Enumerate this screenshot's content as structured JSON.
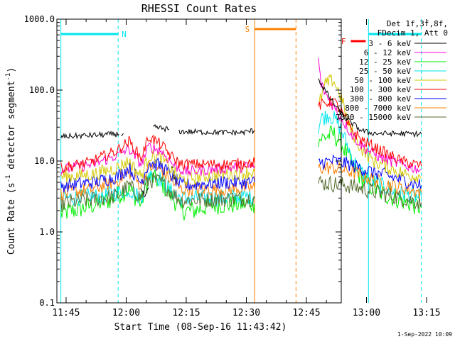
{
  "chart_data": {
    "type": "line",
    "title": "RHESSI Count Rates",
    "xlabel": "Start Time (08-Sep-16 11:43:42)",
    "ylabel_parts": {
      "pre": "Count Rate (s",
      "sup": "-1",
      "post": " detector segment",
      "sup2": "-1",
      "end": ")"
    },
    "yscale": "log",
    "ylim": [
      0.1,
      1000
    ],
    "xlim_min": [
      -1,
      70
    ],
    "x_origin_time": "11:43:42",
    "x_ticks": [
      {
        "label": "11:45",
        "v": 1.3
      },
      {
        "label": "12:00",
        "v": 16.3
      },
      {
        "label": "12:15",
        "v": 31.3
      },
      {
        "label": "12:30",
        "v": 46.3
      },
      {
        "label": "12:45",
        "v": 61.3
      },
      {
        "label": "13:00",
        "v": 76.3
      },
      {
        "label": "13:15",
        "v": 91.3
      }
    ],
    "y_ticks": [
      {
        "label": "0.1",
        "v": 0.1
      },
      {
        "label": "1.0",
        "v": 1
      },
      {
        "label": "10.0",
        "v": 10
      },
      {
        "label": "100.0",
        "v": 100
      },
      {
        "label": "1000.0",
        "v": 1000
      }
    ],
    "legend_header": [
      "Det 1f,3f,8f,",
      "FDecim 1, Att 0"
    ],
    "series": [
      {
        "name": "3 - 6 keV",
        "color": "#000000",
        "segs": [
          [
            [
              0,
              22
            ],
            [
              14.5,
              24
            ]
          ],
          [
            [
              15,
              24
            ],
            [
              15.6,
              24.5
            ]
          ],
          [
            [
              20,
              4
            ],
            [
              21,
              3
            ],
            [
              22,
              4.2
            ]
          ],
          [
            [
              23,
              30
            ],
            [
              27,
              28
            ]
          ],
          [
            [
              27.5,
              8
            ],
            [
              28,
              8
            ]
          ],
          [
            [
              28,
              6
            ],
            [
              29,
              5
            ]
          ],
          [
            [
              29.5,
              26
            ],
            [
              45,
              25
            ],
            [
              48.4,
              27
            ]
          ],
          [
            [
              64.3,
              150
            ],
            [
              65,
              120
            ],
            [
              67,
              80
            ],
            [
              69,
              55
            ],
            [
              71,
              40
            ],
            [
              73,
              33
            ],
            [
              75,
              27
            ],
            [
              77,
              25
            ],
            [
              79,
              24.5
            ],
            [
              90,
              24
            ]
          ]
        ]
      },
      {
        "name": "6 - 12 keV",
        "color": "#ff00cc",
        "segs": [
          [
            [
              0,
              7.5
            ],
            [
              8,
              9
            ],
            [
              14,
              12
            ],
            [
              17,
              15
            ],
            [
              20,
              9
            ],
            [
              22,
              16
            ],
            [
              25,
              14
            ],
            [
              28,
              9
            ],
            [
              31,
              7
            ],
            [
              36,
              7.5
            ],
            [
              42,
              8
            ],
            [
              48.4,
              8.5
            ]
          ],
          [
            [
              64.3,
              260
            ],
            [
              65,
              120
            ],
            [
              66.5,
              80
            ],
            [
              68,
              60
            ],
            [
              70,
              40
            ],
            [
              73,
              22
            ],
            [
              76,
              15
            ],
            [
              80,
              11
            ],
            [
              85,
              9
            ],
            [
              90,
              7.5
            ]
          ]
        ]
      },
      {
        "name": "12 - 25 keV",
        "color": "#00ee00",
        "segs": [
          [
            [
              0,
              1.8
            ],
            [
              6,
              2.2
            ],
            [
              12,
              2.8
            ],
            [
              17,
              4
            ],
            [
              20,
              2.5
            ],
            [
              22,
              6
            ],
            [
              25,
              5
            ],
            [
              28,
              3
            ],
            [
              30,
              2
            ],
            [
              33,
              2
            ],
            [
              38,
              2.4
            ],
            [
              48.4,
              2.5
            ]
          ],
          [
            [
              64.3,
              20
            ],
            [
              66,
              22
            ],
            [
              68,
              24
            ],
            [
              70,
              18
            ],
            [
              73,
              8
            ],
            [
              76,
              5
            ],
            [
              80,
              3.5
            ],
            [
              85,
              2.8
            ],
            [
              90,
              2.2
            ]
          ]
        ]
      },
      {
        "name": "25 - 50 keV",
        "color": "#00e5ee",
        "segs": [
          [
            [
              0,
              3
            ],
            [
              10,
              3.2
            ],
            [
              17,
              4
            ],
            [
              20,
              3
            ],
            [
              22,
              7
            ],
            [
              25,
              5.5
            ],
            [
              28,
              3.5
            ],
            [
              30,
              3
            ],
            [
              40,
              3
            ],
            [
              48.4,
              3.2
            ]
          ],
          [
            [
              64.3,
              30
            ],
            [
              65,
              40
            ],
            [
              67,
              45
            ],
            [
              69,
              35
            ],
            [
              71,
              20
            ],
            [
              73,
              10
            ],
            [
              76,
              6
            ],
            [
              80,
              4.5
            ],
            [
              85,
              3.5
            ],
            [
              90,
              3
            ]
          ]
        ]
      },
      {
        "name": "50 - 100 keV",
        "color": "#d4c800",
        "segs": [
          [
            [
              0,
              6
            ],
            [
              8,
              6.5
            ],
            [
              14,
              8
            ],
            [
              17,
              10
            ],
            [
              20,
              6
            ],
            [
              22,
              12
            ],
            [
              25,
              11
            ],
            [
              28,
              7
            ],
            [
              30,
              5.5
            ],
            [
              40,
              6.5
            ],
            [
              48.4,
              7
            ]
          ],
          [
            [
              64.3,
              60
            ],
            [
              66,
              120
            ],
            [
              68,
              140
            ],
            [
              70,
              80
            ],
            [
              72,
              30
            ],
            [
              75,
              15
            ],
            [
              78,
              10
            ],
            [
              82,
              8
            ],
            [
              86,
              6.5
            ],
            [
              90,
              6
            ]
          ]
        ]
      },
      {
        "name": "100 - 300 keV",
        "color": "#ff0000",
        "segs": [
          [
            [
              0,
              8
            ],
            [
              7,
              9.5
            ],
            [
              14,
              14
            ],
            [
              17,
              19
            ],
            [
              20,
              11
            ],
            [
              22,
              22
            ],
            [
              25,
              17
            ],
            [
              28,
              11
            ],
            [
              30,
              9
            ],
            [
              35,
              9
            ],
            [
              42,
              9
            ],
            [
              48.4,
              9.5
            ]
          ],
          [
            [
              64.3,
              60
            ],
            [
              66,
              65
            ],
            [
              68,
              72
            ],
            [
              70,
              50
            ],
            [
              72,
              30
            ],
            [
              75,
              20
            ],
            [
              78,
              16
            ],
            [
              81,
              13
            ],
            [
              85,
              10
            ],
            [
              90,
              8.5
            ]
          ]
        ]
      },
      {
        "name": "300 - 800 keV",
        "color": "#0000ff",
        "segs": [
          [
            [
              0,
              4.5
            ],
            [
              8,
              5
            ],
            [
              14,
              6
            ],
            [
              17,
              8
            ],
            [
              20,
              5
            ],
            [
              22,
              9.5
            ],
            [
              25,
              8.5
            ],
            [
              28,
              6
            ],
            [
              30,
              4.5
            ],
            [
              40,
              5
            ],
            [
              48.4,
              5
            ]
          ],
          [
            [
              64.3,
              9.5
            ],
            [
              68,
              10
            ],
            [
              72,
              9
            ],
            [
              76,
              7.5
            ],
            [
              80,
              6.5
            ],
            [
              85,
              5.5
            ],
            [
              90,
              4.5
            ]
          ]
        ]
      },
      {
        "name": "800 - 7000 keV",
        "color": "#ff8000",
        "segs": [
          [
            [
              0,
              3.5
            ],
            [
              8,
              4
            ],
            [
              14,
              5.2
            ],
            [
              17,
              7
            ],
            [
              20,
              4.5
            ],
            [
              22,
              8.5
            ],
            [
              25,
              7.5
            ],
            [
              28,
              5
            ],
            [
              30,
              4
            ],
            [
              40,
              4
            ],
            [
              48.4,
              4.2
            ]
          ],
          [
            [
              64.3,
              8
            ],
            [
              68,
              8
            ],
            [
              72,
              7.2
            ],
            [
              76,
              6
            ],
            [
              80,
              5
            ],
            [
              85,
              4.2
            ],
            [
              90,
              3.6
            ]
          ]
        ]
      },
      {
        "name": "7000 - 15000 keV",
        "color": "#556b2f",
        "segs": [
          [
            [
              0,
              2.5
            ],
            [
              14,
              3.2
            ],
            [
              17,
              4.5
            ],
            [
              20,
              3
            ],
            [
              22,
              5.5
            ],
            [
              25,
              5
            ],
            [
              28,
              3.5
            ],
            [
              30,
              2.8
            ],
            [
              48.4,
              3
            ]
          ],
          [
            [
              64.3,
              5
            ],
            [
              72,
              4.5
            ],
            [
              80,
              3.5
            ],
            [
              90,
              2.6
            ]
          ]
        ]
      }
    ],
    "flags": {
      "night": {
        "label": "N",
        "color": "#00e5ee",
        "segments": [
          [
            0,
            14.3
          ],
          [
            76.8,
            90
          ]
        ],
        "end_lines": [
          0,
          14.3,
          76.8,
          90
        ]
      },
      "saa": {
        "label": "S",
        "color": "#ff8000",
        "segments": [
          [
            48.4,
            58.7
          ]
        ],
        "end_lines": [
          48.4,
          58.7
        ]
      },
      "flare": {
        "label": "F",
        "color": "#ff0000",
        "segments": [
          [
            72.4,
            76.1
          ]
        ]
      }
    },
    "timestamp": "1-Sep-2022 10:09"
  }
}
